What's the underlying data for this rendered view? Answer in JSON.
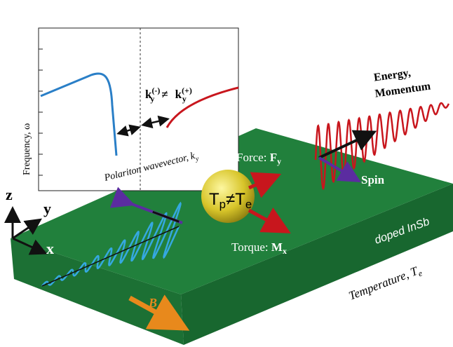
{
  "inset": {
    "y_label": "Frequency, ω",
    "x_label": "Polariton wavevector, k",
    "x_label_sub": "y"
  },
  "inequality": {
    "left": "k",
    "left_sub": "y",
    "left_sup": "(-)",
    "op": "≠",
    "right": "k",
    "right_sub": "y",
    "right_sup": "(+)"
  },
  "labels": {
    "energy": "Energy,",
    "momentum": "Momentum",
    "force": {
      "text": "Force: ",
      "symbol": "F",
      "sub": "y"
    },
    "spin": "Spin",
    "sphere": {
      "t1": "T",
      "s1": "p",
      "op": "≠",
      "t2": "T",
      "s2": "e"
    },
    "torque": {
      "text": "Torque: ",
      "symbol": "M",
      "sub": "x"
    },
    "material": "doped InSb",
    "temperature": {
      "text": "Temperature, T",
      "sub": "e"
    },
    "field": "B",
    "axes": {
      "z": "z",
      "y": "y",
      "x": "x"
    }
  }
}
